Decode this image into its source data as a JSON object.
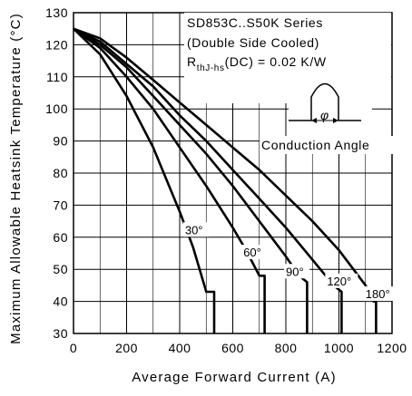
{
  "chart_data": {
    "type": "line",
    "xlabel": "Average Forward Current (A)",
    "ylabel": "Maximum Allowable Heatsink Temperature (°C)",
    "xlim": [
      0,
      1200
    ],
    "ylim": [
      30,
      130
    ],
    "xticks": [
      0,
      200,
      400,
      600,
      800,
      1000,
      1200
    ],
    "yticks": [
      30,
      40,
      50,
      60,
      70,
      80,
      90,
      100,
      110,
      120,
      130
    ],
    "grid": true,
    "annotations": {
      "series_name": "SD853C..S50K Series",
      "cooling": "(Double Side Cooled)",
      "rth_main": "R",
      "rth_sub": "thJ-hs",
      "rth_value": "(DC) = 0.02 K/W",
      "inset_caption": "Conduction Angle",
      "inset_symbol": "φ"
    },
    "series": [
      {
        "label": "30°",
        "x": [
          0,
          100,
          200,
          300,
          400,
          450,
          500,
          530,
          530
        ],
        "y": [
          125,
          117,
          104,
          88,
          68,
          57,
          43,
          43,
          30
        ]
      },
      {
        "label": "60°",
        "x": [
          0,
          100,
          200,
          300,
          400,
          500,
          600,
          650,
          700,
          720,
          720
        ],
        "y": [
          125,
          119,
          110,
          100,
          88,
          76,
          63,
          56,
          48,
          48,
          30
        ]
      },
      {
        "label": "90°",
        "x": [
          0,
          100,
          200,
          300,
          400,
          500,
          600,
          700,
          800,
          850,
          880,
          880
        ],
        "y": [
          125,
          120,
          113,
          104,
          95,
          86,
          76,
          65,
          54,
          48,
          46,
          30
        ]
      },
      {
        "label": "120°",
        "x": [
          0,
          100,
          200,
          300,
          400,
          500,
          600,
          700,
          800,
          900,
          980,
          1010,
          1010
        ],
        "y": [
          125,
          121,
          114,
          107,
          98,
          90,
          81,
          72,
          63,
          53,
          45,
          43,
          30
        ]
      },
      {
        "label": "180°",
        "x": [
          0,
          100,
          200,
          300,
          400,
          500,
          600,
          700,
          800,
          900,
          1000,
          1100,
          1130,
          1140,
          1140
        ],
        "y": [
          125,
          122,
          116,
          109,
          102,
          95,
          88,
          81,
          73,
          65,
          56,
          45,
          40,
          40,
          30
        ]
      }
    ]
  }
}
